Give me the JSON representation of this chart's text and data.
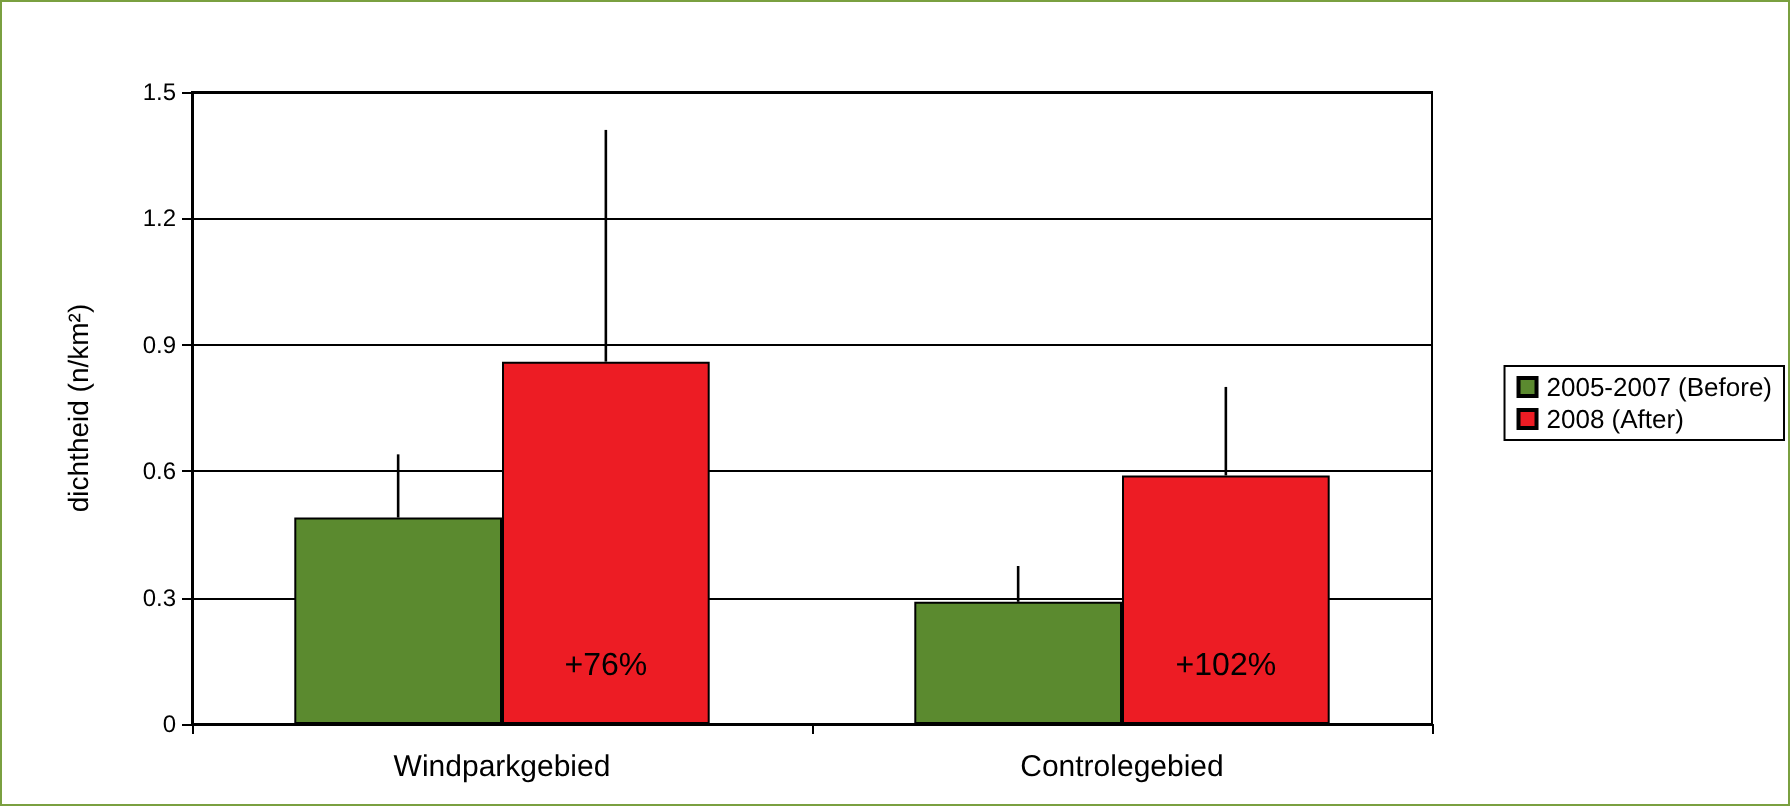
{
  "chart_data": {
    "type": "bar",
    "ylabel": "dichtheid (n/km²)",
    "categories": [
      "Windparkgebied",
      "Controlegebied"
    ],
    "series": [
      {
        "name": "2005-2007 (Before)",
        "color": "#5b8a2f",
        "values": [
          0.49,
          0.29
        ],
        "errors": [
          [
            0.49,
            0.64
          ],
          [
            0.29,
            0.375
          ]
        ]
      },
      {
        "name": "2008 (After)",
        "color": "#ed1c24",
        "values": [
          0.86,
          0.59
        ],
        "errors": [
          [
            0.86,
            1.41
          ],
          [
            0.59,
            0.8
          ]
        ]
      }
    ],
    "annotations": [
      {
        "text": "+76%",
        "x": "Windparkgebied",
        "y": 0.1
      },
      {
        "text": "+102%",
        "x": "Controlegebied",
        "y": 0.1
      }
    ],
    "ylim": [
      0,
      1.5
    ],
    "yticks": [
      0,
      0.3,
      0.6,
      0.9,
      1.2,
      1.5
    ],
    "grid": "y",
    "legend": "right"
  }
}
